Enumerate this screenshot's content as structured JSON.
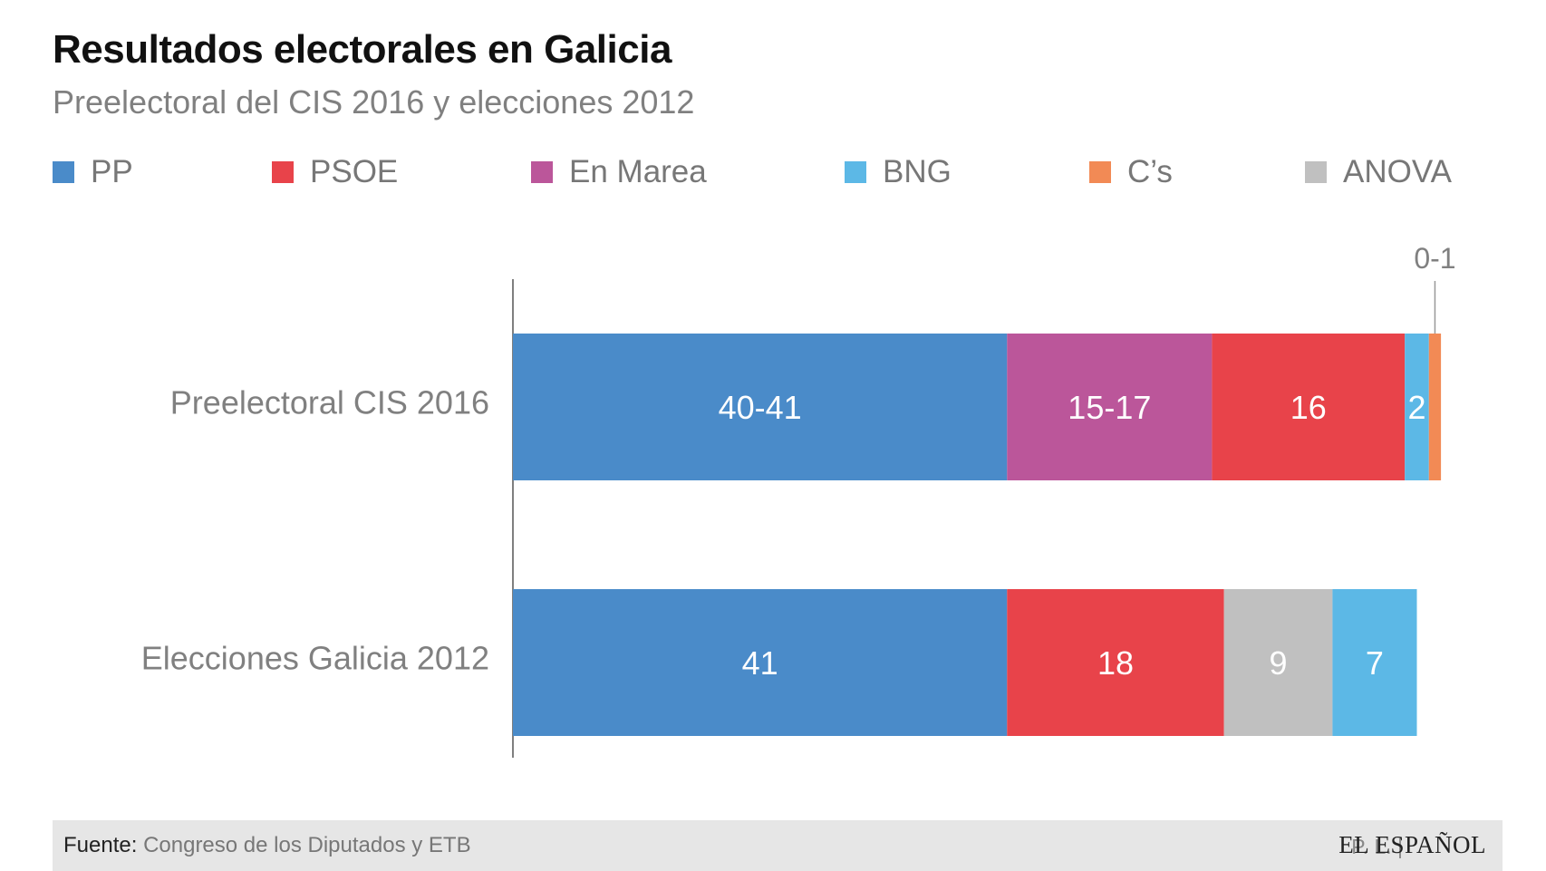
{
  "header": {
    "title": "Resultados electorales en Galicia",
    "subtitle": "Preelectoral del CIS 2016 y elecciones 2012"
  },
  "legend": [
    {
      "label": "PP",
      "color": "#4a8bc9"
    },
    {
      "label": "PSOE",
      "color": "#e8434a"
    },
    {
      "label": "En Marea",
      "color": "#bb569a"
    },
    {
      "label": "BNG",
      "color": "#5cb8e6"
    },
    {
      "label": "C’s",
      "color": "#f28a55"
    },
    {
      "label": "ANOVA",
      "color": "#c0c0c0"
    }
  ],
  "chart_data": {
    "type": "bar",
    "orientation": "horizontal",
    "stacked": true,
    "title": "Resultados electorales en Galicia",
    "subtitle": "Preelectoral del CIS 2016 y elecciones 2012",
    "xlim": [
      0,
      75
    ],
    "grid": false,
    "categories": [
      "Preelectoral CIS 2016",
      "Elecciones Galicia 2012"
    ],
    "series_rows": [
      {
        "category": "Preelectoral CIS 2016",
        "segments": [
          {
            "party": "PP",
            "value": 41,
            "label": "40-41",
            "color": "#4a8bc9"
          },
          {
            "party": "En Marea",
            "value": 17,
            "label": "15-17",
            "color": "#bb569a"
          },
          {
            "party": "PSOE",
            "value": 16,
            "label": "16",
            "color": "#e8434a"
          },
          {
            "party": "BNG",
            "value": 2,
            "label": "2",
            "color": "#5cb8e6"
          },
          {
            "party": "C’s",
            "value": 1,
            "label": "0-1",
            "color": "#f28a55",
            "callout": true
          }
        ]
      },
      {
        "category": "Elecciones Galicia 2012",
        "segments": [
          {
            "party": "PP",
            "value": 41,
            "label": "41",
            "color": "#4a8bc9"
          },
          {
            "party": "PSOE",
            "value": 18,
            "label": "18",
            "color": "#e8434a"
          },
          {
            "party": "ANOVA",
            "value": 9,
            "label": "9",
            "color": "#c0c0c0"
          },
          {
            "party": "BNG",
            "value": 7,
            "label": "7",
            "color": "#5cb8e6"
          }
        ]
      }
    ]
  },
  "footer": {
    "source_label": "Fuente:",
    "source_text": "Congreso de los Diputados y ETB",
    "credit": "P. L. |",
    "brand": "EL ESPAÑOL"
  }
}
